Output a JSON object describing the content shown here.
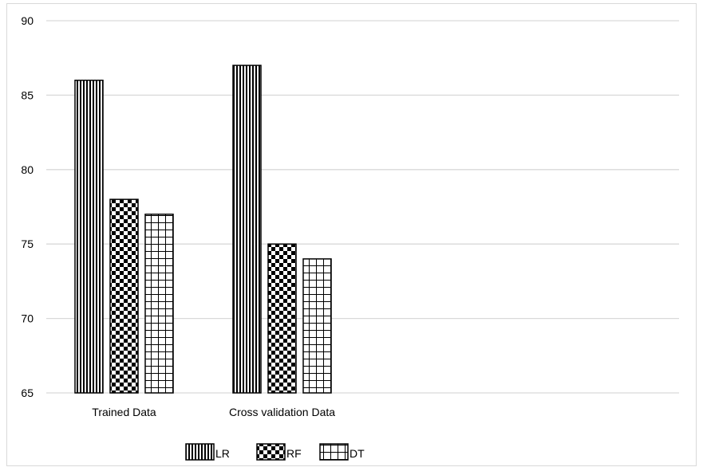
{
  "chart_data": {
    "type": "bar",
    "title": "",
    "xlabel": "",
    "ylabel": "",
    "categories": [
      "Trained Data",
      "Cross validation Data"
    ],
    "series": [
      {
        "name": "LR",
        "pattern": "vertical-lines",
        "values": [
          86,
          87
        ]
      },
      {
        "name": "RF",
        "pattern": "checkerboard",
        "values": [
          78,
          75
        ]
      },
      {
        "name": "DT",
        "pattern": "grid",
        "values": [
          77,
          74
        ]
      }
    ],
    "ylim": [
      65,
      90
    ],
    "yticks": [
      65,
      70,
      75,
      80,
      85,
      90
    ],
    "grid": true,
    "legend": "bottom",
    "colors": {
      "bar_fill": "#ffffff",
      "pattern": "#000000",
      "gridline": "#d9d9d9",
      "frame": "#d9d9d9"
    }
  }
}
